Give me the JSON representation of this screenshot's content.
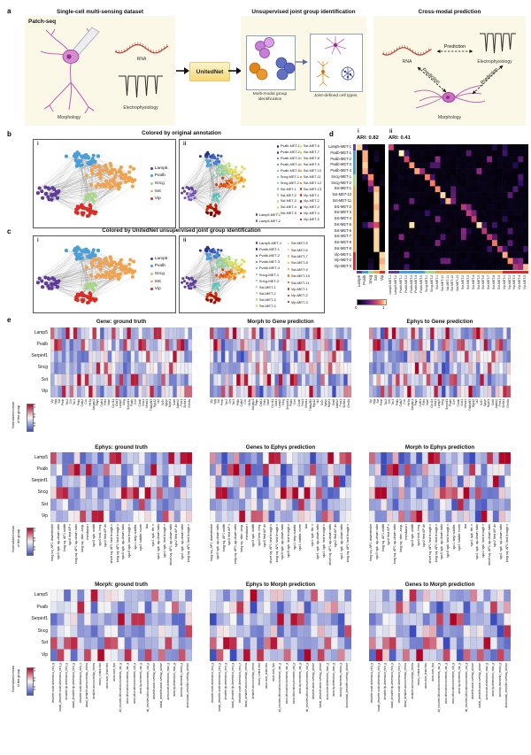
{
  "colors": {
    "subclass": {
      "Lamp5": "#5e3c99",
      "Pvalb": "#4a9fd8",
      "Sncg": "#a6d884",
      "Sst": "#f2a24c",
      "Vip": "#d92e26"
    },
    "heat_low": "#3b4cc0",
    "heat_mid": "#f6f6f6",
    "heat_high": "#b40426",
    "panel_bg": "#fcf8e8"
  },
  "panel_a": {
    "label": "a",
    "dataset_title": "Single-cell multi-sensing dataset",
    "patch_seq": "Patch-seq",
    "morphology": "Morphology",
    "rna": "RNA",
    "electrophysiology": "Electrophysiology",
    "unitednet": "UnitedNet",
    "group_title": "Unsupervised joint group identification",
    "multimodal_caption": "Multi-modal group identification",
    "joint_caption": "Joint-defined cell types",
    "prediction_title": "Cross-modal prediction",
    "prediction_label": "Prediction",
    "rna2": "RNA",
    "electrophysiology2": "Electrophysiology",
    "morphology2": "Morphology"
  },
  "panel_b": {
    "label": "b",
    "title": "Colored by original annotation",
    "sub_i": "i",
    "sub_ii": "ii",
    "legend_i": [
      {
        "label": "Lamp5",
        "color": "#5e3c99"
      },
      {
        "label": "Pvalb",
        "color": "#4a9fd8"
      },
      {
        "label": "Sncg",
        "color": "#a6d884"
      },
      {
        "label": "Sst",
        "color": "#f2a24c"
      },
      {
        "label": "Vip",
        "color": "#d92e26"
      }
    ],
    "legend_ii": [
      {
        "align": "end",
        "items": [
          {
            "label": "Lamp5-MET-1",
            "color": "#5e3c99"
          },
          {
            "label": "Lamp5-MET-2",
            "color": "#7e57c2"
          }
        ]
      },
      {
        "align": "start",
        "items": [
          {
            "label": "Pvalb-MET-1",
            "color": "#27348b"
          },
          {
            "label": "Pvalb-MET-2",
            "color": "#2f4aae"
          },
          {
            "label": "Pvalb-MET-3",
            "color": "#3a66cb"
          },
          {
            "label": "Pvalb-MET-4",
            "color": "#4585dc"
          },
          {
            "label": "Pvalb-MET-5",
            "color": "#51a3de"
          },
          {
            "label": "Sncg-MET-1",
            "color": "#4fc0c9"
          },
          {
            "label": "Sncg-MET-2",
            "color": "#65ccb6"
          },
          {
            "label": "Sst-MET-1",
            "color": "#7dd4a0"
          },
          {
            "label": "Sst-MET-2",
            "color": "#94da8b"
          },
          {
            "label": "Sst-MET-3",
            "color": "#abdf78"
          },
          {
            "label": "Sst-MET-4",
            "color": "#c2e368"
          },
          {
            "label": "Sst-MET-5",
            "color": "#d5e45b"
          }
        ]
      },
      {
        "align": "start",
        "items": [
          {
            "label": "Sst-MET-6",
            "color": "#e4dc4e"
          },
          {
            "label": "Sst-MET-7",
            "color": "#efcb41"
          },
          {
            "label": "Sst-MET-8",
            "color": "#f5b735"
          },
          {
            "label": "Sst-MET-9",
            "color": "#f7a02a"
          },
          {
            "label": "Sst-MET-10",
            "color": "#f68820"
          },
          {
            "label": "Sst-MET-11",
            "color": "#f06f16"
          },
          {
            "label": "Sst-MET-12",
            "color": "#e6550d"
          },
          {
            "label": "Sst-MET-13",
            "color": "#da3c07"
          },
          {
            "label": "Vip-MET-1",
            "color": "#cc2a05"
          },
          {
            "label": "Vip-MET-2",
            "color": "#bb1c04"
          },
          {
            "label": "Vip-MET-3",
            "color": "#a51202"
          },
          {
            "label": "Vip-MET-4",
            "color": "#8e0a02"
          },
          {
            "label": "Vip-MET-5",
            "color": "#770601"
          }
        ]
      }
    ]
  },
  "panel_c": {
    "label": "c",
    "title": "Colored by UnitedNet unsupervised joint group identification",
    "sub_i": "i",
    "sub_ii": "ii",
    "legend_i": [
      {
        "label": "Lamp5",
        "color": "#5e3c99"
      },
      {
        "label": "Pvalb",
        "color": "#4a9fd8"
      },
      {
        "label": "Sncg",
        "color": "#a6d884"
      },
      {
        "label": "Sst",
        "color": "#f2a24c"
      },
      {
        "label": "Vip",
        "color": "#d92e26"
      }
    ],
    "legend_ii": [
      {
        "align": "start",
        "items": [
          {
            "label": "Lamp5-MET-1",
            "color": "#5e3c99"
          },
          {
            "label": "Pvalb-MET-1",
            "color": "#27348b"
          },
          {
            "label": "Pvalb-MET-2",
            "color": "#3452b4"
          },
          {
            "label": "Pvalb-MET-3",
            "color": "#3f78d1"
          },
          {
            "label": "Pvalb-MET-4",
            "color": "#4da0dc"
          },
          {
            "label": "Sncg-MET-1",
            "color": "#4fc4c9"
          },
          {
            "label": "Sncg-MET-2",
            "color": "#68cfae"
          },
          {
            "label": "Sst-MET-1",
            "color": "#80d69b"
          },
          {
            "label": "Sst-MET-2",
            "color": "#99dc84"
          },
          {
            "label": "Sst-MET-3",
            "color": "#b3e170"
          },
          {
            "label": "Sst-MET-4",
            "color": "#cce561"
          }
        ]
      },
      {
        "align": "start",
        "items": [
          {
            "label": "Sst-MET-5",
            "color": "#dde255"
          },
          {
            "label": "Sst-MET-6",
            "color": "#ebd348"
          },
          {
            "label": "Sst-MET-7",
            "color": "#f3bd3a"
          },
          {
            "label": "Sst-MET-8",
            "color": "#f7a42c"
          },
          {
            "label": "Sst-MET-9",
            "color": "#f68a21"
          },
          {
            "label": "Sst-MET-10",
            "color": "#ef6c15"
          },
          {
            "label": "Sst-MET-11",
            "color": "#e04c09"
          },
          {
            "label": "Vip-MET-1",
            "color": "#d13406"
          },
          {
            "label": "Vip-MET-2",
            "color": "#b81d04"
          },
          {
            "label": "Vip-MET-3",
            "color": "#991002"
          }
        ]
      }
    ]
  },
  "panel_d": {
    "label": "d",
    "sub_i": "i",
    "sub_ii": "ii",
    "ari_i": "ARI: 0.82",
    "ari_ii": "ARI: 0.41",
    "row_labels": [
      "Lamp5-MET-1",
      "Pvalb-MET-1",
      "Pvalb-MET-2",
      "Pvalb-MET-3",
      "Pvalb-MET-4",
      "Sncg-MET-1",
      "Sncg-MET-2",
      "Sst-MET-1",
      "Sst-MET-10",
      "Sst-MET-11",
      "Sst-MET-2",
      "Sst-MET-3",
      "Sst-MET-4",
      "Sst-MET-5",
      "Sst-MET-6",
      "Sst-MET-7",
      "Sst-MET-8",
      "Sst-MET-9",
      "Vip-MET-1",
      "Vip-MET-2",
      "Vip-MET-3"
    ],
    "row_groups": [
      0,
      1,
      1,
      1,
      1,
      2,
      2,
      3,
      3,
      3,
      3,
      3,
      3,
      3,
      3,
      3,
      3,
      3,
      4,
      4,
      4
    ],
    "col_labels_i": [
      "Lamp5",
      "Pvalb",
      "Sncg",
      "Sst",
      "Vip"
    ],
    "col_labels_ii": [
      "Lamp5-MET-1",
      "Lamp5-MET-2",
      "Pvalb-MET-1",
      "Pvalb-MET-2",
      "Pvalb-MET-3",
      "Pvalb-MET-4",
      "Pvalb-MET-5",
      "Sncg-MET-1",
      "Sncg-MET-2",
      "Sst-MET-1",
      "Sst-MET-10",
      "Sst-MET-11",
      "Sst-MET-12",
      "Sst-MET-13",
      "Sst-MET-2",
      "Sst-MET-3",
      "Sst-MET-4",
      "Sst-MET-5",
      "Sst-MET-6",
      "Sst-MET-7",
      "Sst-MET-8",
      "Sst-MET-9",
      "Vip-MET-1",
      "Vip-MET-2",
      "Vip-MET-3",
      "Vip-MET-4",
      "Vip-MET-5"
    ],
    "col_groups_ii": [
      0,
      0,
      1,
      1,
      1,
      1,
      1,
      2,
      2,
      3,
      3,
      3,
      3,
      3,
      3,
      3,
      3,
      3,
      3,
      3,
      3,
      3,
      4,
      4,
      4,
      4,
      4
    ],
    "matrix_i": [
      [
        0.95,
        0.15,
        0,
        0,
        0
      ],
      [
        0,
        0.9,
        0,
        0.08,
        0
      ],
      [
        0,
        0.9,
        0,
        0.12,
        0
      ],
      [
        0,
        0.95,
        0,
        0,
        0
      ],
      [
        0,
        0.9,
        0.1,
        0,
        0
      ],
      [
        0,
        0.2,
        0.85,
        0,
        0.05
      ],
      [
        0,
        0,
        0.6,
        0,
        0.1
      ],
      [
        0,
        0,
        0.3,
        0.9,
        0
      ],
      [
        0,
        0,
        0,
        0.95,
        0
      ],
      [
        0,
        0,
        0,
        0.95,
        0
      ],
      [
        0,
        0,
        0,
        0.9,
        0
      ],
      [
        0,
        0.05,
        0,
        0.95,
        0
      ],
      [
        0,
        0,
        0,
        0.95,
        0
      ],
      [
        0,
        0.25,
        0.5,
        0.7,
        0
      ],
      [
        0,
        0,
        0,
        0.95,
        0
      ],
      [
        0,
        0,
        0,
        0.95,
        0
      ],
      [
        0,
        0,
        0,
        0.95,
        0
      ],
      [
        0,
        0,
        0,
        0.95,
        0
      ],
      [
        0,
        0,
        0,
        0,
        0.95
      ],
      [
        0,
        0,
        0.1,
        0,
        0.9
      ],
      [
        0,
        0,
        0.15,
        0,
        0.95
      ]
    ],
    "diag_ii": [
      0,
      2,
      3,
      4,
      5,
      7,
      8,
      9,
      10,
      11,
      14,
      15,
      16,
      17,
      18,
      19,
      20,
      21,
      22,
      23,
      24
    ],
    "seed_ii": 42,
    "cbar_min": "0",
    "cbar_max": "1"
  },
  "panel_e": {
    "label": "e",
    "cbar_label": [
      "Normalized mean",
      "of the group"
    ],
    "cbar_ticks": [
      "0.0",
      "0.5",
      "1.0"
    ],
    "row_labels": [
      "Lamp5",
      "Pvalb",
      "Serpinf1",
      "Sncg",
      "Sst",
      "Vip"
    ],
    "blocks": [
      {
        "id": "gene",
        "seed": 7,
        "titles": [
          "Gene: ground truth",
          "Morph to Gene prediction",
          "Ephys to Gene prediction"
        ],
        "cols": [
          "Vip",
          "Npy",
          "Sst",
          "Penk",
          "Tac2",
          "Crh",
          "Tac1",
          "Pthlh",
          "Calb2",
          "Cck",
          "Htr3a",
          "Adcyap1",
          "Pdyn",
          "Calb1",
          "Reln",
          "Ndnf",
          "Cxcl14",
          "Gad1",
          "Lamp5",
          "Sncg",
          "Serpinf1",
          "Pvalb",
          "Cort",
          "Chodl",
          "Nos1",
          "Moxd1",
          "Tnfaip8l3",
          "Rgs12",
          "Id2",
          "Sv2c",
          "Synpr",
          "Nxph1",
          "Sox6",
          "Adarb2",
          "Prox1",
          "Slc6a1",
          "Grin3a"
        ]
      },
      {
        "id": "ephys",
        "seed": 19,
        "titles": [
          "Ephys: ground truth",
          "Genes to Ephys prediction",
          "Morph to Ephys prediction"
        ],
        "cols": [
          "long sq. AP1 downstroke",
          "spc0 spk. up-down ratio",
          "long sq. AP1 width",
          "spc0 first AP v",
          "long sq. AP1 up-down ratio",
          "long sq. stim. amp.",
          "rheobase i",
          "spc0 spk. width",
          "spc0 inst. freq.",
          "spc0 first AP dv",
          "short sq. AP1 fast trough v",
          "long sq. AP1 fast trough v",
          "spc0 spk. up-down ratio",
          "spc0 spk. fast trough v",
          "spc1 step subthr.",
          "spc1 subthr. norm",
          "tau",
          "spc1 spk. thr. v",
          "spc1 spk. up-down ratio",
          "spc1 spk. fast trough v",
          "short sq. AP1 up-down ratio",
          "spc2 first AP dv",
          "spc1 spk. up-down ratio",
          "long sq. AP1 fast trough v"
        ]
      },
      {
        "id": "morph",
        "seed": 31,
        "titles": [
          "Morph: ground truth",
          "Ephys to Morph prediction",
          "Genes to Morph prediction"
        ],
        "cols": [
          "dendrite.node.dimension_min_y",
          "basal_dendrite.node.dimension_min_y",
          "dendrite.tip.dimension_min_y",
          "basal_dendrite.tip.dimension_min_y",
          "dendrite.node.dimension_min_z",
          "basal_dendrite.axon.overlap_below",
          "dendrite.axon.overlap_below",
          "mean_contraction",
          "axon.num_branches",
          "axon.num_tips",
          "all_neurites.bifurcation.moments_var_y",
          "axon.bifurcation.moments_var_y",
          "axon.bifurcation.moments_std_y",
          "axon.tip.moments_var_y",
          "all_neurites.bifurcation.moments_std_y",
          "dendrite.axon.overlap_above",
          "basal_dendrite.axon.overlap_above",
          "axon.node.dimension_max_y",
          "axon.tip.dimension_max_y",
          "axon.tip.moments_mean_y",
          "axon.basal_dendrite.overlap_above"
        ]
      }
    ]
  }
}
